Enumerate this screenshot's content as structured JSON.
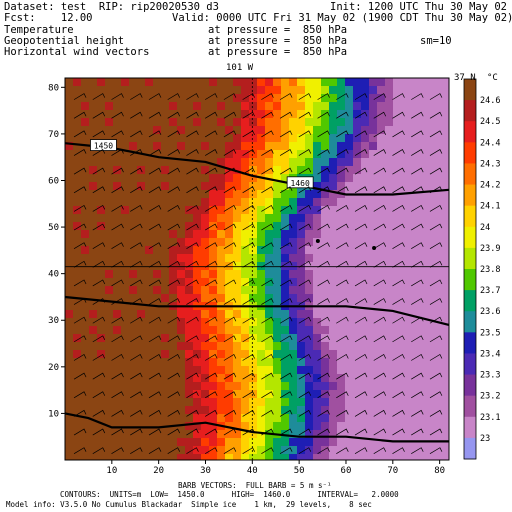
{
  "header": {
    "dataset": "Dataset: test  RIP: rip20020530 d3",
    "init": "Init: 1200 UTC Thu 30 May 02",
    "fcst": "Fcst:    12.00",
    "valid": "Valid: 0000 UTC Fri 31 May 02 (1900 CDT Thu 30 May 02)",
    "fields": [
      {
        "name": "Temperature",
        "pressure": "at pressure =  850 hPa"
      },
      {
        "name": "Geopotential height",
        "pressure": "at pressure =  850 hPa"
      },
      {
        "name": "Horizontal wind vectors",
        "pressure": "at pressure =  850 hPa"
      }
    ],
    "sm": "sm=10"
  },
  "map": {
    "top_label_lon": "101 W",
    "top_right_lat": "37 N",
    "y_ticks": [
      "10",
      "20",
      "30",
      "40",
      "50",
      "60",
      "70",
      "80"
    ],
    "x_ticks": [
      "10",
      "20",
      "30",
      "40",
      "50",
      "60",
      "70",
      "80"
    ],
    "contour_labels": [
      "1450",
      "1460"
    ]
  },
  "colorbar": {
    "unit": "°C",
    "labels": [
      "24.6",
      "24.5",
      "24.4",
      "24.3",
      "24.2",
      "24.1",
      "24",
      "23.9",
      "23.8",
      "23.7",
      "23.6",
      "23.5",
      "23.4",
      "23.3",
      "23.2",
      "23.1",
      "23"
    ],
    "colors": [
      "#8B4513",
      "#b41e1e",
      "#e61e1e",
      "#ff3c00",
      "#ff6e00",
      "#ffa000",
      "#ffd200",
      "#f0f000",
      "#b4e600",
      "#50c800",
      "#00a064",
      "#1e8c9a",
      "#1e1eb4",
      "#4b2ab4",
      "#78329b",
      "#a050a0",
      "#c885c8",
      "#9696f0"
    ]
  },
  "footer": {
    "line1": "BARB VECTORS:  FULL BARB = 5 m s⁻¹",
    "line2": "CONTOURS:  UNITS=m  LOW=  1450.0      HIGH=  1460.0      INTERVAL=   2.0000",
    "line3": "Model info: V3.5.0 No Cumulus Blackadar  Simple ice    1 km,  29 levels,    8 sec"
  },
  "colors": {
    "domain_frame": "#000000",
    "contour": "#000000"
  }
}
